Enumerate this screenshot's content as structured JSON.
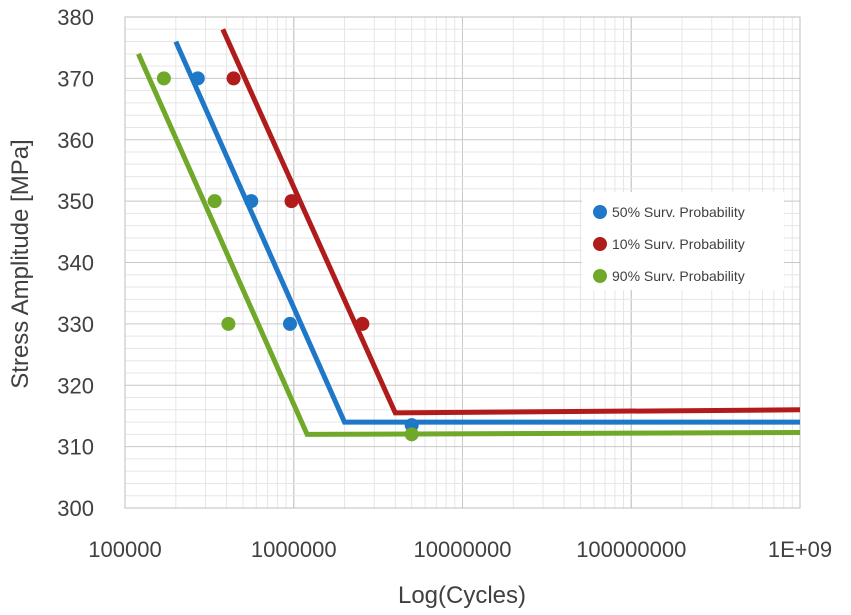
{
  "chart_data": {
    "type": "scatter",
    "title": "",
    "xlabel": "Log(Cycles)",
    "ylabel": "Stress Amplitude [MPa]",
    "xscale": "log",
    "xlim": [
      100000,
      1000000000
    ],
    "ylim": [
      300,
      380
    ],
    "grid": true,
    "legend_position": "right",
    "x_tick_labels": [
      "100000",
      "1000000",
      "10000000",
      "100000000",
      "1E+09"
    ],
    "y_tick_labels": [
      "300",
      "310",
      "320",
      "330",
      "340",
      "350",
      "360",
      "370",
      "380"
    ],
    "series": [
      {
        "name": "50% Surv. Probability",
        "color": "#1f77c8",
        "points": [
          [
            270000,
            370
          ],
          [
            560000,
            350
          ],
          [
            950000,
            330
          ],
          [
            5000000,
            313.5
          ]
        ],
        "fit_line": [
          [
            200000,
            376
          ],
          [
            2000000,
            314
          ],
          [
            1000000000,
            314
          ]
        ]
      },
      {
        "name": "10% Surv. Probability",
        "color": "#b01c1c",
        "points": [
          [
            440000,
            370
          ],
          [
            970000,
            350
          ],
          [
            2550000,
            330
          ]
        ],
        "fit_line": [
          [
            380000,
            378
          ],
          [
            4000000,
            315.5
          ],
          [
            1000000000,
            316
          ]
        ]
      },
      {
        "name": "90% Surv. Probability",
        "color": "#70a82a",
        "points": [
          [
            170000,
            370
          ],
          [
            340000,
            350
          ],
          [
            410000,
            330
          ],
          [
            5000000,
            312
          ]
        ],
        "fit_line": [
          [
            120000,
            374
          ],
          [
            1200000,
            312
          ],
          [
            1000000000,
            312.3
          ]
        ]
      }
    ]
  }
}
